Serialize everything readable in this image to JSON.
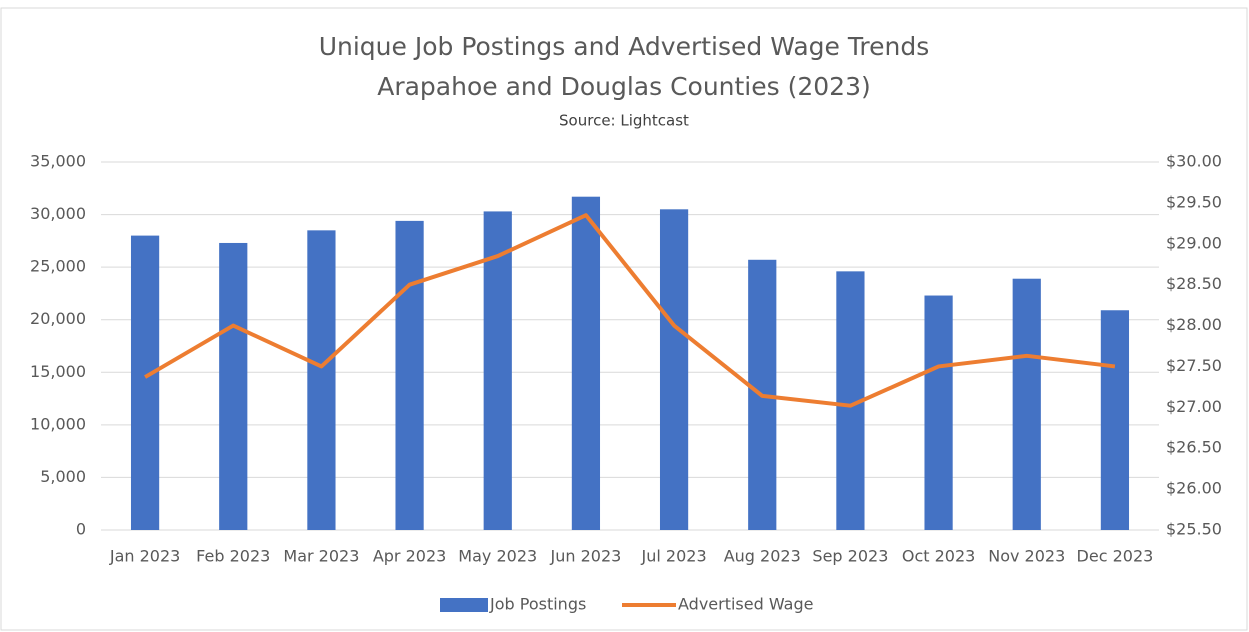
{
  "chart_data": {
    "type": "bar_line",
    "title": [
      "Unique Job Postings and Advertised Wage Trends",
      "Arapahoe and Douglas Counties (2023)"
    ],
    "subtitle": "Source: Lightcast",
    "categories": [
      "Jan 2023",
      "Feb 2023",
      "Mar 2023",
      "Apr 2023",
      "May 2023",
      "Jun 2023",
      "Jul 2023",
      "Aug 2023",
      "Sep 2023",
      "Oct 2023",
      "Nov 2023",
      "Dec 2023"
    ],
    "series": [
      {
        "name": "Job Postings",
        "type": "bar",
        "color": "#4472c4",
        "values": [
          28000,
          27300,
          28500,
          29400,
          30300,
          31700,
          30500,
          25700,
          24600,
          22300,
          23900,
          20900
        ]
      },
      {
        "name": "Advertised Wage",
        "type": "line",
        "axis": "y2",
        "color": "#ed7d31",
        "values": [
          27.37,
          28.0,
          27.5,
          28.5,
          28.85,
          29.35,
          28.0,
          27.14,
          27.02,
          27.5,
          27.63,
          27.5
        ]
      }
    ],
    "ylim": [
      0,
      35000
    ],
    "yticks": [
      0,
      {
        "value": 5000,
        "label": "5,000"
      },
      {
        "value": 10000,
        "label": "10,000"
      },
      {
        "value": 15000,
        "label": "15,000"
      },
      {
        "value": 20000,
        "label": "20,000"
      },
      {
        "value": 25000,
        "label": "25,000"
      },
      {
        "value": 30000,
        "label": "30,000"
      },
      {
        "value": 35000,
        "label": "35,000"
      }
    ],
    "y2lim": [
      25.5,
      30
    ],
    "y2ticks": [
      {
        "value": 25.5,
        "label": "$25.50"
      },
      {
        "value": 26,
        "label": "$26.00"
      },
      {
        "value": 26.5,
        "label": "$26.50"
      },
      {
        "value": 27,
        "label": "$27.00"
      },
      {
        "value": 27.5,
        "label": "$27.50"
      },
      {
        "value": 28,
        "label": "$28.00"
      },
      {
        "value": 28.5,
        "label": "$28.50"
      },
      {
        "value": 29,
        "label": "$29.00"
      },
      {
        "value": 29.5,
        "label": "$29.50"
      },
      {
        "value": 30,
        "label": "$30.00"
      }
    ],
    "grid": true,
    "legend": "bottom"
  }
}
